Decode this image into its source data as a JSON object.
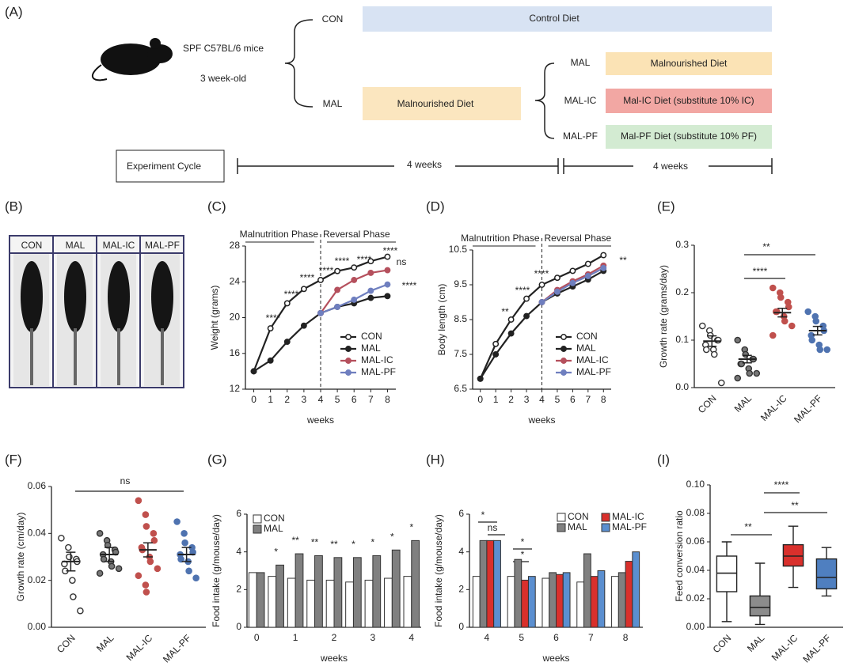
{
  "diagram": {
    "panel": "(A)",
    "mice": "SPF C57BL/6 mice",
    "age": "3 week-old",
    "con_label": "CON",
    "con_diet": "Control Diet",
    "mal_label": "MAL",
    "mal_diet": "Malnourished Diet",
    "branches": [
      {
        "label": "MAL",
        "diet": "Malnourished Diet"
      },
      {
        "label": "MAL-IC",
        "diet": "Mal-IC Diet (substitute 10% IC)"
      },
      {
        "label": "MAL-PF",
        "diet": "Mal-PF Diet (substitute 10% PF)"
      }
    ],
    "cycle": "Experiment Cycle",
    "phase1": "4 weeks",
    "phase2": "4 weeks"
  },
  "photo": {
    "panel": "(B)",
    "labels": [
      "CON",
      "MAL",
      "MAL-IC",
      "MAL-PF"
    ]
  },
  "chart_data": [
    {
      "type": "line",
      "panel": "(C)",
      "xlabel": "weeks",
      "ylabel": "Weight (grams)",
      "phases": [
        "Malnutrition Phase",
        "Reversal Phase"
      ],
      "x": [
        0,
        1,
        2,
        3,
        4,
        5,
        6,
        7,
        8
      ],
      "xlim": [
        -0.5,
        8.5
      ],
      "xticks": [
        0,
        1,
        2,
        3,
        4,
        5,
        6,
        7,
        8
      ],
      "ylim": [
        12,
        28
      ],
      "yticks": [
        12,
        16,
        20,
        24,
        28
      ],
      "legend": "lower right",
      "series": [
        {
          "name": "CON",
          "color": "#222222",
          "marker_fill": "#ffffff",
          "values": [
            14,
            18.8,
            21.6,
            23.2,
            24.2,
            25.2,
            25.6,
            26.3,
            26.8
          ]
        },
        {
          "name": "MAL",
          "color": "#222222",
          "marker_fill": "#222222",
          "values": [
            14,
            15.2,
            17.3,
            19.1,
            20.5,
            21.2,
            21.6,
            22.2,
            22.4
          ]
        },
        {
          "name": "MAL-IC",
          "color": "#b5505d",
          "marker_fill": "#b5505d",
          "values": [
            null,
            null,
            null,
            null,
            20.5,
            23.1,
            24.2,
            25.0,
            25.3
          ]
        },
        {
          "name": "MAL-PF",
          "color": "#6f7fbf",
          "marker_fill": "#6f7fbf",
          "values": [
            null,
            null,
            null,
            null,
            20.5,
            21.2,
            22.0,
            23.0,
            23.7
          ]
        }
      ],
      "annotations": [
        "****",
        "****",
        "****",
        "****",
        "****",
        "****",
        "****",
        "ns",
        "****"
      ]
    },
    {
      "type": "line",
      "panel": "(D)",
      "xlabel": "weeks",
      "ylabel": "Body length (cm)",
      "phases": [
        "Malnutrition Phase",
        "Reversal Phase"
      ],
      "x": [
        0,
        1,
        2,
        3,
        4,
        5,
        6,
        7,
        8
      ],
      "xlim": [
        -0.5,
        8.5
      ],
      "xticks": [
        0,
        1,
        2,
        3,
        4,
        5,
        6,
        7,
        8
      ],
      "ylim": [
        6.5,
        10.5
      ],
      "yticks": [
        6.5,
        7.5,
        8.5,
        9.5,
        10.5
      ],
      "legend": "lower right",
      "series": [
        {
          "name": "CON",
          "color": "#222222",
          "marker_fill": "#ffffff",
          "values": [
            6.8,
            7.8,
            8.5,
            9.1,
            9.5,
            9.7,
            9.9,
            10.1,
            10.35
          ]
        },
        {
          "name": "MAL",
          "color": "#222222",
          "marker_fill": "#222222",
          "values": [
            6.8,
            7.5,
            8.1,
            8.6,
            9.0,
            9.25,
            9.45,
            9.65,
            9.9
          ]
        },
        {
          "name": "MAL-IC",
          "color": "#b5505d",
          "marker_fill": "#b5505d",
          "values": [
            null,
            null,
            null,
            null,
            9.0,
            9.35,
            9.6,
            9.8,
            10.05
          ]
        },
        {
          "name": "MAL-PF",
          "color": "#6f7fbf",
          "marker_fill": "#6f7fbf",
          "values": [
            null,
            null,
            null,
            null,
            9.0,
            9.3,
            9.55,
            9.75,
            9.98
          ]
        }
      ],
      "annotations": [
        "**",
        "****",
        "****",
        "**"
      ]
    },
    {
      "type": "dot",
      "panel": "(E)",
      "ylabel": "Growth rate (grams/day)",
      "categories": [
        "CON",
        "MAL",
        "MAL-IC",
        "MAL-PF"
      ],
      "colors": [
        "#ffffff",
        "#777777",
        "#c0504d",
        "#4f73b0"
      ],
      "ylim": [
        0,
        0.3
      ],
      "yticks": [
        {
          "value": 0,
          "label": "0.0"
        },
        0.1,
        0.2,
        0.3
      ],
      "groups": [
        [
          0.13,
          0.12,
          0.11,
          0.1,
          0.1,
          0.09,
          0.08,
          0.08,
          0.07,
          0.01
        ],
        [
          0.1,
          0.08,
          0.07,
          0.06,
          0.06,
          0.05,
          0.05,
          0.04,
          0.03,
          0.03,
          0.02
        ],
        [
          0.21,
          0.2,
          0.19,
          0.18,
          0.17,
          0.16,
          0.16,
          0.15,
          0.14,
          0.13,
          0.11
        ],
        [
          0.16,
          0.15,
          0.14,
          0.13,
          0.12,
          0.11,
          0.1,
          0.09,
          0.08,
          0.08
        ]
      ],
      "means": [
        0.098,
        0.06,
        0.158,
        0.12
      ],
      "errors": [
        0.011,
        0.008,
        0.009,
        0.009
      ],
      "annotations": [
        "**",
        "****"
      ]
    },
    {
      "type": "dot",
      "panel": "(F)",
      "ylabel": "Growth rate (cm/day)",
      "categories": [
        "CON",
        "MAL",
        "MAL-IC",
        "MAL-PF"
      ],
      "colors": [
        "#ffffff",
        "#777777",
        "#c0504d",
        "#4f73b0"
      ],
      "ylim": [
        0,
        0.06
      ],
      "yticks": [
        {
          "value": 0,
          "label": "0.00"
        },
        {
          "value": 0.02,
          "label": "0.02"
        },
        {
          "value": 0.04,
          "label": "0.04"
        },
        {
          "value": 0.06,
          "label": "0.06"
        }
      ],
      "groups": [
        [
          0.038,
          0.034,
          0.03,
          0.029,
          0.028,
          0.027,
          0.024,
          0.02,
          0.013,
          0.007
        ],
        [
          0.04,
          0.037,
          0.035,
          0.033,
          0.032,
          0.031,
          0.029,
          0.028,
          0.026,
          0.025,
          0.023
        ],
        [
          0.054,
          0.048,
          0.043,
          0.04,
          0.037,
          0.034,
          0.033,
          0.03,
          0.028,
          0.025,
          0.022,
          0.018,
          0.015
        ],
        [
          0.045,
          0.04,
          0.036,
          0.034,
          0.032,
          0.031,
          0.029,
          0.028,
          0.024,
          0.021
        ]
      ],
      "means": [
        0.028,
        0.031,
        0.033,
        0.031
      ],
      "errors": [
        0.004,
        0.003,
        0.003,
        0.003
      ],
      "annotations": [
        "ns"
      ]
    },
    {
      "type": "bar",
      "panel": "(G)",
      "xlabel": "weeks",
      "ylabel": "Food intake (g/mouse/day)",
      "categories": [
        "0",
        null,
        "1",
        null,
        "2",
        null,
        "3",
        null,
        "4"
      ],
      "ylim": [
        0,
        6
      ],
      "yticks": [
        0,
        2,
        4,
        6
      ],
      "legend": "upper left",
      "series": [
        {
          "name": "CON",
          "color": "#ffffff",
          "values": [
            2.9,
            2.7,
            2.6,
            2.5,
            2.5,
            2.4,
            2.5,
            2.6,
            2.7
          ]
        },
        {
          "name": "MAL",
          "color": "#808080",
          "values": [
            2.9,
            3.3,
            3.9,
            3.8,
            3.7,
            3.7,
            3.8,
            4.1,
            4.6
          ]
        }
      ],
      "annotations": [
        "*",
        "**",
        "**",
        "**",
        "*",
        "*",
        "*",
        "*"
      ]
    },
    {
      "type": "bar",
      "panel": "(H)",
      "xlabel": "weeks",
      "ylabel": "Food intake (g/mouse/day)",
      "categories": [
        "4",
        "5",
        "6",
        "7",
        "8"
      ],
      "ylim": [
        0,
        6
      ],
      "yticks": [
        0,
        2,
        4,
        6
      ],
      "legend": "upper right",
      "series": [
        {
          "name": "CON",
          "color": "#ffffff",
          "values": [
            2.7,
            2.7,
            2.6,
            2.4,
            2.7
          ]
        },
        {
          "name": "MAL",
          "color": "#808080",
          "values": [
            4.6,
            3.6,
            2.9,
            3.9,
            2.9
          ]
        },
        {
          "name": "MAL-IC",
          "color": "#d9302c",
          "values": [
            4.6,
            2.5,
            2.8,
            2.7,
            3.5
          ]
        },
        {
          "name": "MAL-PF",
          "color": "#5b8fd0",
          "values": [
            4.6,
            2.7,
            2.9,
            3.0,
            4.0
          ]
        }
      ],
      "annotations": [
        "*",
        "ns",
        "*",
        "*"
      ]
    },
    {
      "type": "box",
      "panel": "(I)",
      "ylabel": "Feed conversion ratio",
      "categories": [
        "CON",
        "MAL",
        "MAL-IC",
        "MAL-PF"
      ],
      "colors": [
        "#ffffff",
        "#8c8c8c",
        "#d9302c",
        "#4f7fc0"
      ],
      "ylim": [
        0,
        0.1
      ],
      "yticks": [
        {
          "value": 0,
          "label": "0.00"
        },
        {
          "value": 0.02,
          "label": "0.02"
        },
        {
          "value": 0.04,
          "label": "0.04"
        },
        {
          "value": 0.06,
          "label": "0.06"
        },
        {
          "value": 0.08,
          "label": "0.08"
        },
        {
          "value": 0.1,
          "label": "0.10"
        }
      ],
      "boxes": [
        {
          "min": 0.004,
          "q1": 0.025,
          "median": 0.038,
          "q3": 0.05,
          "max": 0.06
        },
        {
          "min": 0.002,
          "q1": 0.008,
          "median": 0.014,
          "q3": 0.022,
          "max": 0.045
        },
        {
          "min": 0.028,
          "q1": 0.043,
          "median": 0.05,
          "q3": 0.058,
          "max": 0.071
        },
        {
          "min": 0.022,
          "q1": 0.027,
          "median": 0.035,
          "q3": 0.048,
          "max": 0.056
        }
      ],
      "annotations": [
        "**",
        "****",
        "**"
      ]
    }
  ]
}
